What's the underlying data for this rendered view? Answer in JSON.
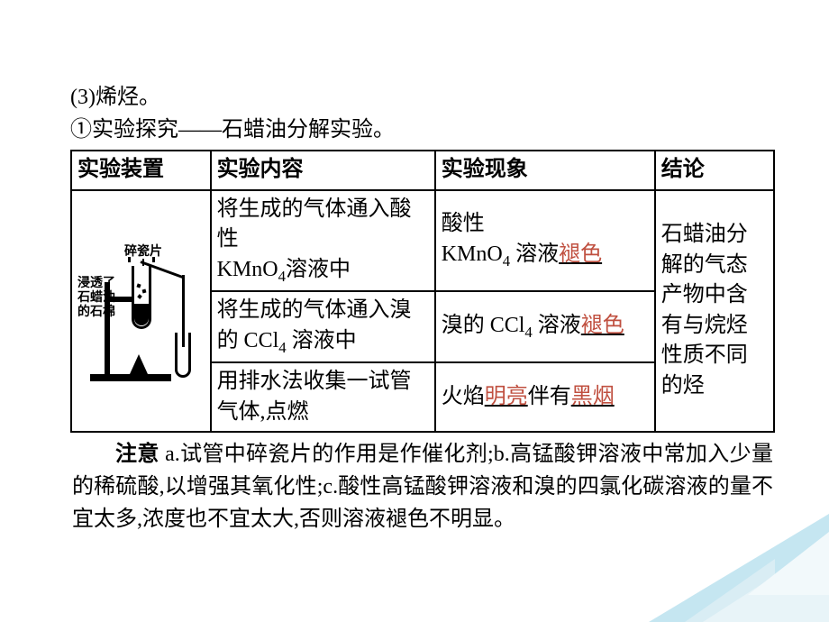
{
  "intro": {
    "line1_prefix": "(3)",
    "line1_text": "烯烃。",
    "line2_prefix": "①",
    "line2_text": "实验探究——石蜡油分解实验。"
  },
  "table": {
    "headers": {
      "apparatus": "实验装置",
      "content": "实验内容",
      "phenomenon": "实验现象",
      "conclusion": "结论"
    },
    "apparatus_labels": {
      "ceramic": "碎瓷片",
      "asbestos_l1": "浸透了",
      "asbestos_l2": "石蜡油",
      "asbestos_l3": "的石棉"
    },
    "rows": [
      {
        "content_pre": "将生成的气体通入酸性",
        "content_formula_base": "KMnO",
        "content_formula_sub": "4",
        "content_post": "溶液中",
        "phenom_pre": "酸性",
        "phenom_formula_base": "KMnO",
        "phenom_formula_sub": "4",
        "phenom_mid": " 溶液",
        "phenom_hl": "褪色"
      },
      {
        "content_pre": "将生成的气体通入溴的 CCl",
        "content_formula_sub": "4",
        "content_post": " 溶液中",
        "phenom_pre": "溴的 CCl",
        "phenom_formula_sub": "4",
        "phenom_mid": " 溶液",
        "phenom_hl": "褪色"
      },
      {
        "content_pre": "用排水法收集一试管气体,点燃",
        "phenom_pre": "火焰",
        "phenom_hl1": "明亮",
        "phenom_mid": "伴有",
        "phenom_hl2": "黑烟"
      }
    ],
    "conclusion": "石蜡油分解的气态产物中含有与烷烃性质不同的烃"
  },
  "note": {
    "label": "注意",
    "text": " a.试管中碎瓷片的作用是作催化剂;b.高锰酸钾溶液中常加入少量的稀硫酸,以增强其氧化性;c.酸性高锰酸钾溶液和溴的四氯化碳溶液的量不宜太多,浓度也不宜太大,否则溶液褪色不明显。"
  },
  "colors": {
    "text": "#000000",
    "highlight": "#c05040",
    "deco1": "#bfe3ef",
    "deco2": "#e8f4f8",
    "deco3": "#d9edf4",
    "deco4": "#f2f9fb"
  }
}
